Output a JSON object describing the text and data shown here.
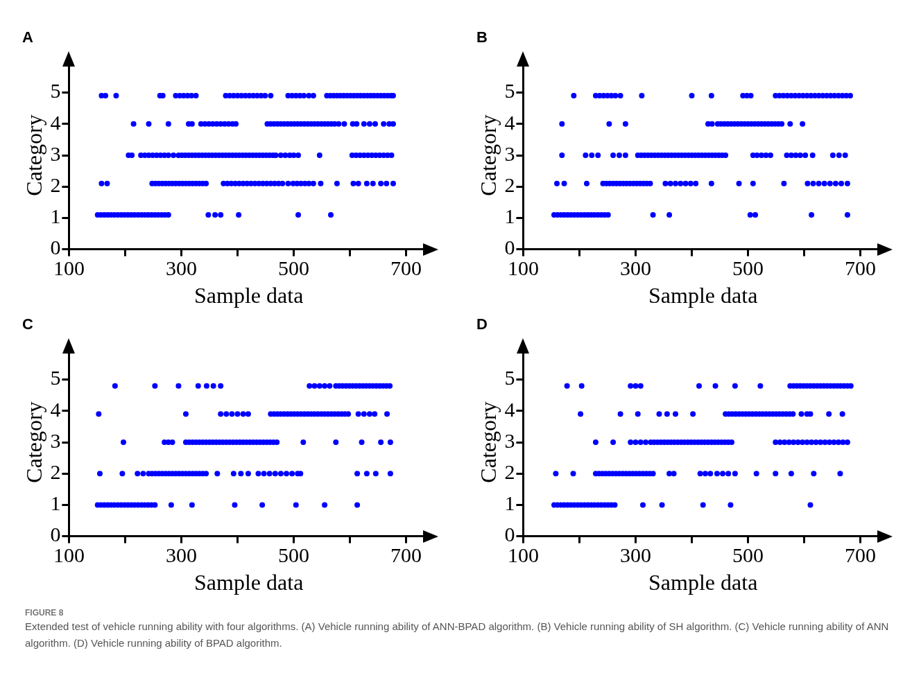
{
  "chart_data": [
    {
      "type": "scatter",
      "title": "A",
      "xlabel": "Sample data",
      "ylabel": "Category",
      "xlim": [
        100,
        740
      ],
      "xticks": [
        100,
        {
          "value": 200,
          "label": null
        },
        300,
        {
          "value": 400,
          "label": null
        },
        500,
        {
          "value": 600,
          "label": null
        },
        700
      ],
      "ylim": [
        0,
        6
      ],
      "yticks": [
        0,
        1,
        2,
        3,
        4,
        5
      ],
      "grid": false,
      "marker": "circle",
      "series": [
        {
          "color": "#0000ff",
          "x": [
            158,
            165,
            184,
            262,
            267,
            290,
            297,
            304,
            311,
            318,
            326,
            379,
            386,
            393,
            400,
            407,
            414,
            421,
            428,
            435,
            442,
            449,
            459,
            490,
            497,
            504,
            511,
            518,
            527,
            535,
            559,
            565,
            571,
            577,
            583,
            589,
            595,
            601,
            607,
            613,
            619,
            625,
            631,
            637,
            643,
            649,
            655,
            661,
            667,
            673,
            677
          ],
          "values": [
            4.9,
            4.9,
            4.9,
            4.9,
            4.9,
            4.9,
            4.9,
            4.9,
            4.9,
            4.9,
            4.9,
            4.9,
            4.9,
            4.9,
            4.9,
            4.9,
            4.9,
            4.9,
            4.9,
            4.9,
            4.9,
            4.9,
            4.9,
            4.9,
            4.9,
            4.9,
            4.9,
            4.9,
            4.9,
            4.9,
            4.9,
            4.9,
            4.9,
            4.9,
            4.9,
            4.9,
            4.9,
            4.9,
            4.9,
            4.9,
            4.9,
            4.9,
            4.9,
            4.9,
            4.9,
            4.9,
            4.9,
            4.9,
            4.9,
            4.9,
            4.9
          ]
        },
        {
          "color": "#0000ff",
          "x": [
            215,
            242,
            277,
            313,
            319,
            335,
            342,
            349,
            356,
            363,
            370,
            377,
            384,
            391,
            397,
            453,
            459,
            465,
            471,
            477,
            483,
            489,
            495,
            501,
            507,
            513,
            519,
            525,
            531,
            537,
            543,
            549,
            555,
            561,
            567,
            573,
            580,
            590,
            605,
            612,
            625,
            635,
            645,
            660,
            670,
            677
          ],
          "values": [
            4,
            4,
            4,
            4,
            4,
            4,
            4,
            4,
            4,
            4,
            4,
            4,
            4,
            4,
            4,
            4,
            4,
            4,
            4,
            4,
            4,
            4,
            4,
            4,
            4,
            4,
            4,
            4,
            4,
            4,
            4,
            4,
            4,
            4,
            4,
            4,
            4,
            4,
            4,
            4,
            4,
            4,
            4,
            4,
            4,
            4
          ]
        },
        {
          "color": "#0000ff",
          "x": [
            206,
            212,
            228,
            235,
            242,
            249,
            256,
            263,
            270,
            277,
            286,
            295,
            301,
            307,
            313,
            319,
            325,
            331,
            337,
            343,
            349,
            355,
            361,
            367,
            373,
            379,
            385,
            391,
            397,
            403,
            409,
            415,
            421,
            427,
            433,
            439,
            445,
            451,
            457,
            463,
            468,
            477,
            485,
            493,
            500,
            508,
            546,
            604,
            611,
            618,
            625,
            632,
            639,
            646,
            653,
            660,
            667,
            674
          ],
          "values": [
            3,
            3,
            3,
            3,
            3,
            3,
            3,
            3,
            3,
            3,
            3,
            3,
            3,
            3,
            3,
            3,
            3,
            3,
            3,
            3,
            3,
            3,
            3,
            3,
            3,
            3,
            3,
            3,
            3,
            3,
            3,
            3,
            3,
            3,
            3,
            3,
            3,
            3,
            3,
            3,
            3,
            3,
            3,
            3,
            3,
            3,
            3,
            3,
            3,
            3,
            3,
            3,
            3,
            3,
            3,
            3,
            3,
            3
          ]
        },
        {
          "color": "#0000ff",
          "x": [
            158,
            168,
            248,
            254,
            260,
            266,
            272,
            278,
            284,
            290,
            296,
            302,
            308,
            314,
            320,
            326,
            332,
            338,
            344,
            375,
            382,
            389,
            396,
            403,
            410,
            417,
            424,
            431,
            438,
            445,
            452,
            459,
            466,
            473,
            480,
            490,
            499,
            506,
            513,
            520,
            527,
            535,
            548,
            577,
            606,
            615,
            630,
            641,
            655,
            665,
            677
          ],
          "values": [
            2.1,
            2.1,
            2.1,
            2.1,
            2.1,
            2.1,
            2.1,
            2.1,
            2.1,
            2.1,
            2.1,
            2.1,
            2.1,
            2.1,
            2.1,
            2.1,
            2.1,
            2.1,
            2.1,
            2.1,
            2.1,
            2.1,
            2.1,
            2.1,
            2.1,
            2.1,
            2.1,
            2.1,
            2.1,
            2.1,
            2.1,
            2.1,
            2.1,
            2.1,
            2.1,
            2.1,
            2.1,
            2.1,
            2.1,
            2.1,
            2.1,
            2.1,
            2.1,
            2.1,
            2.1,
            2.1,
            2.1,
            2.1,
            2.1,
            2.1,
            2.1
          ]
        },
        {
          "color": "#0000ff",
          "x": [
            151,
            157,
            163,
            169,
            175,
            181,
            187,
            193,
            199,
            205,
            211,
            217,
            223,
            229,
            235,
            241,
            247,
            253,
            259,
            265,
            271,
            277,
            348,
            360,
            370,
            402,
            508,
            566
          ],
          "values": [
            1.1,
            1.1,
            1.1,
            1.1,
            1.1,
            1.1,
            1.1,
            1.1,
            1.1,
            1.1,
            1.1,
            1.1,
            1.1,
            1.1,
            1.1,
            1.1,
            1.1,
            1.1,
            1.1,
            1.1,
            1.1,
            1.1,
            1.1,
            1.1,
            1.1,
            1.1,
            1.1,
            1.1
          ]
        }
      ],
      "annotations": [
        "FIGURE 8",
        "Extended test of vehicle running ability with four algorithms. (A) Vehicle running ability of ANN-BPAD algorithm. (B) Vehicle running ability of SH algorithm. (C) Vehicle running ability of ANN algorithm. (D) Vehicle running ability of BPAD algorithm."
      ]
    },
    {
      "type": "scatter",
      "title": "B",
      "xlabel": "Sample data",
      "ylabel": "Category",
      "xlim": [
        100,
        740
      ],
      "xticks": [
        100,
        {
          "value": 200,
          "label": null
        },
        300,
        {
          "value": 400,
          "label": null
        },
        500,
        {
          "value": 600,
          "label": null
        },
        700
      ],
      "ylim": [
        0,
        6
      ],
      "yticks": [
        0,
        1,
        2,
        3,
        4,
        5
      ],
      "grid": false,
      "marker": "circle",
      "series": [
        {
          "color": "#0000ff",
          "x": [
            190,
            229,
            236,
            243,
            250,
            257,
            264,
            273,
            311,
            400,
            435,
            491,
            498,
            505,
            549,
            556,
            563,
            570,
            577,
            584,
            591,
            598,
            605,
            612,
            619,
            626,
            633,
            640,
            647,
            654,
            661,
            668,
            675,
            682
          ],
          "values": [
            4.9,
            4.9,
            4.9,
            4.9,
            4.9,
            4.9,
            4.9,
            4.9,
            4.9,
            4.9,
            4.9,
            4.9,
            4.9,
            4.9,
            4.9,
            4.9,
            4.9,
            4.9,
            4.9,
            4.9,
            4.9,
            4.9,
            4.9,
            4.9,
            4.9,
            4.9,
            4.9,
            4.9,
            4.9,
            4.9,
            4.9,
            4.9,
            4.9,
            4.9
          ]
        },
        {
          "color": "#0000ff",
          "x": [
            169,
            253,
            282,
            429,
            436,
            446,
            452,
            458,
            464,
            470,
            476,
            482,
            488,
            494,
            500,
            506,
            512,
            518,
            524,
            530,
            536,
            542,
            548,
            554,
            560,
            575,
            597
          ],
          "values": [
            4,
            4,
            4,
            4,
            4,
            4,
            4,
            4,
            4,
            4,
            4,
            4,
            4,
            4,
            4,
            4,
            4,
            4,
            4,
            4,
            4,
            4,
            4,
            4,
            4,
            4,
            4
          ]
        },
        {
          "color": "#0000ff",
          "x": [
            169,
            211,
            222,
            233,
            260,
            271,
            282,
            304,
            310,
            316,
            322,
            328,
            334,
            340,
            346,
            352,
            358,
            364,
            370,
            376,
            382,
            388,
            394,
            400,
            406,
            412,
            418,
            424,
            430,
            436,
            442,
            448,
            454,
            460,
            509,
            516,
            524,
            532,
            540,
            569,
            577,
            585,
            593,
            602,
            615,
            651,
            662,
            673
          ],
          "values": [
            3,
            3,
            3,
            3,
            3,
            3,
            3,
            3,
            3,
            3,
            3,
            3,
            3,
            3,
            3,
            3,
            3,
            3,
            3,
            3,
            3,
            3,
            3,
            3,
            3,
            3,
            3,
            3,
            3,
            3,
            3,
            3,
            3,
            3,
            3,
            3,
            3,
            3,
            3,
            3,
            3,
            3,
            3,
            3,
            3,
            3,
            3,
            3
          ]
        },
        {
          "color": "#0000ff",
          "x": [
            160,
            173,
            213,
            242,
            248,
            254,
            260,
            266,
            272,
            278,
            284,
            290,
            296,
            302,
            308,
            314,
            320,
            326,
            353,
            362,
            371,
            380,
            389,
            398,
            407,
            435,
            484,
            509,
            564,
            606,
            616,
            626,
            636,
            646,
            656,
            666,
            677
          ],
          "values": [
            2.1,
            2.1,
            2.1,
            2.1,
            2.1,
            2.1,
            2.1,
            2.1,
            2.1,
            2.1,
            2.1,
            2.1,
            2.1,
            2.1,
            2.1,
            2.1,
            2.1,
            2.1,
            2.1,
            2.1,
            2.1,
            2.1,
            2.1,
            2.1,
            2.1,
            2.1,
            2.1,
            2.1,
            2.1,
            2.1,
            2.1,
            2.1,
            2.1,
            2.1,
            2.1,
            2.1,
            2.1
          ]
        },
        {
          "color": "#0000ff",
          "x": [
            155,
            161,
            167,
            173,
            179,
            185,
            191,
            197,
            203,
            209,
            215,
            221,
            227,
            233,
            239,
            245,
            251,
            331,
            360,
            504,
            513,
            613,
            677
          ],
          "values": [
            1.1,
            1.1,
            1.1,
            1.1,
            1.1,
            1.1,
            1.1,
            1.1,
            1.1,
            1.1,
            1.1,
            1.1,
            1.1,
            1.1,
            1.1,
            1.1,
            1.1,
            1.1,
            1.1,
            1.1,
            1.1,
            1.1,
            1.1
          ]
        }
      ]
    },
    {
      "type": "scatter",
      "title": "C",
      "xlabel": "Sample data",
      "ylabel": "Category",
      "xlim": [
        100,
        740
      ],
      "xticks": [
        100,
        {
          "value": 200,
          "label": null
        },
        300,
        {
          "value": 400,
          "label": null
        },
        500,
        {
          "value": 600,
          "label": null
        },
        700
      ],
      "ylim": [
        0,
        6
      ],
      "yticks": [
        0,
        1,
        2,
        3,
        4,
        5
      ],
      "grid": false,
      "marker": "circle",
      "series": [
        {
          "color": "#0000ff",
          "x": [
            182,
            253,
            295,
            330,
            345,
            357,
            370,
            528,
            537,
            546,
            555,
            564,
            575,
            581,
            587,
            593,
            599,
            605,
            611,
            617,
            623,
            629,
            635,
            641,
            647,
            653,
            659,
            665,
            671
          ],
          "values": [
            4.8,
            4.8,
            4.8,
            4.8,
            4.8,
            4.8,
            4.8,
            4.8,
            4.8,
            4.8,
            4.8,
            4.8,
            4.8,
            4.8,
            4.8,
            4.8,
            4.8,
            4.8,
            4.8,
            4.8,
            4.8,
            4.8,
            4.8,
            4.8,
            4.8,
            4.8,
            4.8,
            4.8,
            4.8
          ]
        },
        {
          "color": "#0000ff",
          "x": [
            153,
            308,
            370,
            380,
            390,
            400,
            410,
            419,
            459,
            465,
            471,
            477,
            483,
            489,
            495,
            501,
            507,
            513,
            519,
            525,
            531,
            537,
            543,
            549,
            555,
            561,
            567,
            573,
            579,
            585,
            591,
            597,
            615,
            625,
            635,
            644,
            666
          ],
          "values": [
            3.9,
            3.9,
            3.9,
            3.9,
            3.9,
            3.9,
            3.9,
            3.9,
            3.9,
            3.9,
            3.9,
            3.9,
            3.9,
            3.9,
            3.9,
            3.9,
            3.9,
            3.9,
            3.9,
            3.9,
            3.9,
            3.9,
            3.9,
            3.9,
            3.9,
            3.9,
            3.9,
            3.9,
            3.9,
            3.9,
            3.9,
            3.9,
            3.9,
            3.9,
            3.9,
            3.9,
            3.9
          ]
        },
        {
          "color": "#0000ff",
          "x": [
            197,
            270,
            277,
            284,
            308,
            314,
            320,
            326,
            332,
            338,
            344,
            350,
            356,
            362,
            368,
            374,
            380,
            386,
            392,
            398,
            404,
            410,
            416,
            422,
            428,
            434,
            440,
            446,
            452,
            458,
            464,
            470,
            517,
            575,
            621,
            655,
            672
          ],
          "values": [
            3,
            3,
            3,
            3,
            3,
            3,
            3,
            3,
            3,
            3,
            3,
            3,
            3,
            3,
            3,
            3,
            3,
            3,
            3,
            3,
            3,
            3,
            3,
            3,
            3,
            3,
            3,
            3,
            3,
            3,
            3,
            3,
            3,
            3,
            3,
            3,
            3
          ]
        },
        {
          "color": "#0000ff",
          "x": [
            155,
            195,
            222,
            232,
            242,
            248,
            254,
            260,
            266,
            272,
            278,
            284,
            290,
            296,
            302,
            308,
            314,
            320,
            326,
            332,
            338,
            344,
            364,
            393,
            406,
            419,
            437,
            447,
            457,
            467,
            477,
            487,
            497,
            507,
            512,
            613,
            630,
            646,
            672
          ],
          "values": [
            2,
            2,
            2,
            2,
            2,
            2,
            2,
            2,
            2,
            2,
            2,
            2,
            2,
            2,
            2,
            2,
            2,
            2,
            2,
            2,
            2,
            2,
            2,
            2,
            2,
            2,
            2,
            2,
            2,
            2,
            2,
            2,
            2,
            2,
            2,
            2,
            2,
            2,
            2
          ]
        },
        {
          "color": "#0000ff",
          "x": [
            151,
            157,
            163,
            169,
            175,
            181,
            187,
            193,
            199,
            205,
            211,
            217,
            223,
            229,
            235,
            241,
            247,
            253,
            282,
            319,
            395,
            444,
            504,
            555,
            613
          ],
          "values": [
            1,
            1,
            1,
            1,
            1,
            1,
            1,
            1,
            1,
            1,
            1,
            1,
            1,
            1,
            1,
            1,
            1,
            1,
            1,
            1,
            1,
            1,
            1,
            1,
            1
          ]
        }
      ]
    },
    {
      "type": "scatter",
      "title": "D",
      "xlabel": "Sample data",
      "ylabel": "Category",
      "xlim": [
        100,
        740
      ],
      "xticks": [
        100,
        {
          "value": 200,
          "label": null
        },
        300,
        {
          "value": 400,
          "label": null
        },
        500,
        {
          "value": 600,
          "label": null
        },
        700
      ],
      "ylim": [
        0,
        6
      ],
      "yticks": [
        0,
        1,
        2,
        3,
        4,
        5
      ],
      "grid": false,
      "marker": "circle",
      "series": [
        {
          "color": "#0000ff",
          "x": [
            178,
            204,
            291,
            300,
            309,
            413,
            442,
            477,
            522,
            575,
            581,
            587,
            593,
            599,
            605,
            611,
            617,
            623,
            629,
            635,
            641,
            647,
            653,
            659,
            665,
            671,
            677,
            683
          ],
          "values": [
            4.8,
            4.8,
            4.8,
            4.8,
            4.8,
            4.8,
            4.8,
            4.8,
            4.8,
            4.8,
            4.8,
            4.8,
            4.8,
            4.8,
            4.8,
            4.8,
            4.8,
            4.8,
            4.8,
            4.8,
            4.8,
            4.8,
            4.8,
            4.8,
            4.8,
            4.8,
            4.8,
            4.8
          ]
        },
        {
          "color": "#0000ff",
          "x": [
            202,
            273,
            304,
            342,
            356,
            371,
            402,
            460,
            466,
            472,
            478,
            484,
            490,
            496,
            502,
            508,
            514,
            520,
            526,
            532,
            538,
            544,
            550,
            556,
            562,
            568,
            574,
            580,
            595,
            605,
            611,
            644,
            668
          ],
          "values": [
            3.9,
            3.9,
            3.9,
            3.9,
            3.9,
            3.9,
            3.9,
            3.9,
            3.9,
            3.9,
            3.9,
            3.9,
            3.9,
            3.9,
            3.9,
            3.9,
            3.9,
            3.9,
            3.9,
            3.9,
            3.9,
            3.9,
            3.9,
            3.9,
            3.9,
            3.9,
            3.9,
            3.9,
            3.9,
            3.9,
            3.9,
            3.9,
            3.9
          ]
        },
        {
          "color": "#0000ff",
          "x": [
            229,
            260,
            291,
            300,
            309,
            318,
            327,
            333,
            339,
            345,
            351,
            357,
            363,
            369,
            375,
            381,
            387,
            393,
            399,
            405,
            411,
            417,
            423,
            429,
            435,
            441,
            447,
            453,
            459,
            465,
            471,
            549,
            557,
            565,
            573,
            581,
            589,
            597,
            605,
            613,
            621,
            629,
            637,
            645,
            653,
            661,
            669,
            677
          ],
          "values": [
            3,
            3,
            3,
            3,
            3,
            3,
            3,
            3,
            3,
            3,
            3,
            3,
            3,
            3,
            3,
            3,
            3,
            3,
            3,
            3,
            3,
            3,
            3,
            3,
            3,
            3,
            3,
            3,
            3,
            3,
            3,
            3,
            3,
            3,
            3,
            3,
            3,
            3,
            3,
            3,
            3,
            3,
            3,
            3,
            3,
            3,
            3,
            3
          ]
        },
        {
          "color": "#0000ff",
          "x": [
            158,
            189,
            229,
            235,
            241,
            247,
            253,
            259,
            265,
            271,
            277,
            283,
            289,
            295,
            301,
            307,
            313,
            319,
            325,
            331,
            360,
            368,
            415,
            424,
            433,
            445,
            455,
            465,
            477,
            515,
            549,
            577,
            617,
            664
          ],
          "values": [
            2,
            2,
            2,
            2,
            2,
            2,
            2,
            2,
            2,
            2,
            2,
            2,
            2,
            2,
            2,
            2,
            2,
            2,
            2,
            2,
            2,
            2,
            2,
            2,
            2,
            2,
            2,
            2,
            2,
            2,
            2,
            2,
            2,
            2
          ]
        },
        {
          "color": "#0000ff",
          "x": [
            155,
            161,
            167,
            173,
            179,
            185,
            191,
            197,
            203,
            209,
            215,
            221,
            227,
            233,
            239,
            245,
            251,
            257,
            263,
            313,
            347,
            420,
            469,
            611
          ],
          "values": [
            1,
            1,
            1,
            1,
            1,
            1,
            1,
            1,
            1,
            1,
            1,
            1,
            1,
            1,
            1,
            1,
            1,
            1,
            1,
            1,
            1,
            1,
            1,
            1
          ]
        }
      ]
    }
  ]
}
